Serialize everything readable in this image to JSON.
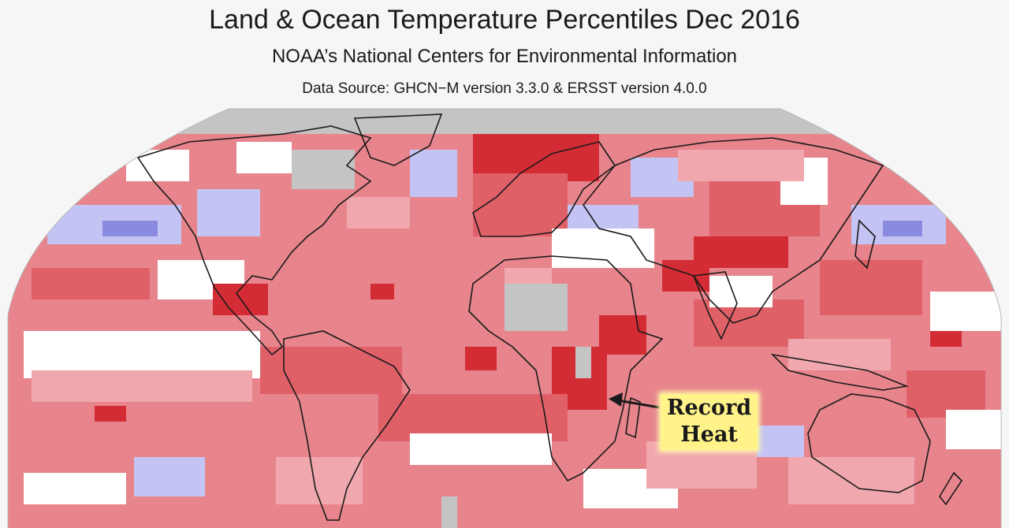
{
  "header": {
    "title": "Land & Ocean Temperature Percentiles Dec 2016",
    "subtitle": "NOAA’s National Centers for Environmental Information",
    "source": "Data Source: GHCN−M version 3.3.0 & ERSST version 4.0.0"
  },
  "map": {
    "projection": "Robinson",
    "colors": {
      "ocean_base": "#e8848c",
      "warmer_than_average": "#f0a8ae",
      "much_warmer_than_average": "#e06068",
      "record_warmest": "#d42c34",
      "near_average": "#ffffff",
      "cooler_than_average": "#c4c4f4",
      "much_cooler_than_average": "#8a8ae0",
      "no_data": "#c4c4c4",
      "coastline": "#1a1a1a"
    }
  },
  "annotation": {
    "line1": "Record",
    "line2": "Heat",
    "highlight_color": "#fff38a"
  }
}
